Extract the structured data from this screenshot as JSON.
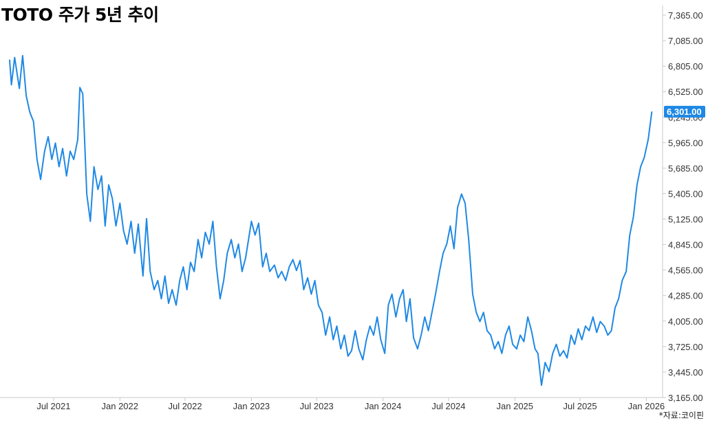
{
  "title": "TOTO 주가 5년 추이",
  "source": "*자료:코이핀",
  "colors": {
    "line": "#1e88e5",
    "axis": "#c8c8c8",
    "last_label_bg": "#1e88e5",
    "last_label_text": "#ffffff"
  },
  "chart_data": {
    "type": "line",
    "title": "TOTO 주가 5년 추이",
    "xlabel": "",
    "ylabel": "",
    "x_range": [
      "2021-03-01",
      "2026-02-15"
    ],
    "ylim": [
      3165,
      7365
    ],
    "y_axis_position": "right",
    "grid": false,
    "y_ticks": [
      "3,165.00",
      "3,445.00",
      "3,725.00",
      "4,005.00",
      "4,285.00",
      "4,565.00",
      "4,845.00",
      "5,125.00",
      "5,405.00",
      "5,685.00",
      "5,965.00",
      "6,245.00",
      "6,525.00",
      "6,805.00",
      "7,085.00",
      "7,365.00"
    ],
    "x_ticks": [
      {
        "date": "2021-07-01",
        "label": "Jul 2021"
      },
      {
        "date": "2022-01-01",
        "label": "Jan 2022"
      },
      {
        "date": "2022-07-01",
        "label": "Jul 2022"
      },
      {
        "date": "2023-01-01",
        "label": "Jan 2023"
      },
      {
        "date": "2023-07-01",
        "label": "Jul 2023"
      },
      {
        "date": "2024-01-01",
        "label": "Jan 2024"
      },
      {
        "date": "2024-07-01",
        "label": "Jul 2024"
      },
      {
        "date": "2025-01-01",
        "label": "Jan 2025"
      },
      {
        "date": "2025-07-01",
        "label": "Jul 2025"
      },
      {
        "date": "2026-01-01",
        "label": "Jan 2026"
      }
    ],
    "last_value_label": "6,301.00",
    "series": [
      {
        "points": [
          [
            "2021-03-01",
            6870
          ],
          [
            "2021-03-06",
            6600
          ],
          [
            "2021-03-15",
            6900
          ],
          [
            "2021-03-28",
            6560
          ],
          [
            "2021-04-06",
            6920
          ],
          [
            "2021-04-16",
            6480
          ],
          [
            "2021-04-26",
            6300
          ],
          [
            "2021-05-06",
            6200
          ],
          [
            "2021-05-16",
            5780
          ],
          [
            "2021-05-26",
            5560
          ],
          [
            "2021-06-06",
            5870
          ],
          [
            "2021-06-16",
            6030
          ],
          [
            "2021-06-26",
            5780
          ],
          [
            "2021-07-06",
            5960
          ],
          [
            "2021-07-16",
            5700
          ],
          [
            "2021-07-26",
            5900
          ],
          [
            "2021-08-06",
            5600
          ],
          [
            "2021-08-16",
            5870
          ],
          [
            "2021-08-26",
            5780
          ],
          [
            "2021-09-06",
            6000
          ],
          [
            "2021-09-12",
            6570
          ],
          [
            "2021-09-20",
            6500
          ],
          [
            "2021-10-01",
            5400
          ],
          [
            "2021-10-11",
            5100
          ],
          [
            "2021-10-21",
            5700
          ],
          [
            "2021-11-01",
            5450
          ],
          [
            "2021-11-11",
            5600
          ],
          [
            "2021-11-21",
            5050
          ],
          [
            "2021-12-01",
            5500
          ],
          [
            "2021-12-11",
            5350
          ],
          [
            "2021-12-21",
            5050
          ],
          [
            "2022-01-01",
            5300
          ],
          [
            "2022-01-11",
            5000
          ],
          [
            "2022-01-21",
            4850
          ],
          [
            "2022-02-01",
            5100
          ],
          [
            "2022-02-11",
            4750
          ],
          [
            "2022-02-21",
            5070
          ],
          [
            "2022-03-06",
            4500
          ],
          [
            "2022-03-16",
            5130
          ],
          [
            "2022-03-26",
            4550
          ],
          [
            "2022-04-06",
            4350
          ],
          [
            "2022-04-16",
            4450
          ],
          [
            "2022-04-26",
            4250
          ],
          [
            "2022-05-06",
            4500
          ],
          [
            "2022-05-16",
            4200
          ],
          [
            "2022-05-26",
            4350
          ],
          [
            "2022-06-06",
            4180
          ],
          [
            "2022-06-16",
            4450
          ],
          [
            "2022-06-26",
            4600
          ],
          [
            "2022-07-06",
            4350
          ],
          [
            "2022-07-16",
            4650
          ],
          [
            "2022-07-26",
            4550
          ],
          [
            "2022-08-06",
            4900
          ],
          [
            "2022-08-16",
            4700
          ],
          [
            "2022-08-26",
            4980
          ],
          [
            "2022-09-06",
            4850
          ],
          [
            "2022-09-16",
            5100
          ],
          [
            "2022-09-26",
            4600
          ],
          [
            "2022-10-06",
            4250
          ],
          [
            "2022-10-16",
            4450
          ],
          [
            "2022-10-26",
            4750
          ],
          [
            "2022-11-06",
            4900
          ],
          [
            "2022-11-16",
            4700
          ],
          [
            "2022-11-26",
            4850
          ],
          [
            "2022-12-06",
            4550
          ],
          [
            "2022-12-16",
            4700
          ],
          [
            "2023-01-01",
            5100
          ],
          [
            "2023-01-11",
            4950
          ],
          [
            "2023-01-21",
            5080
          ],
          [
            "2023-02-01",
            4600
          ],
          [
            "2023-02-11",
            4750
          ],
          [
            "2023-02-21",
            4550
          ],
          [
            "2023-03-06",
            4620
          ],
          [
            "2023-03-16",
            4480
          ],
          [
            "2023-03-26",
            4550
          ],
          [
            "2023-04-06",
            4450
          ],
          [
            "2023-04-16",
            4600
          ],
          [
            "2023-04-26",
            4680
          ],
          [
            "2023-05-06",
            4560
          ],
          [
            "2023-05-16",
            4670
          ],
          [
            "2023-05-26",
            4350
          ],
          [
            "2023-06-06",
            4480
          ],
          [
            "2023-06-16",
            4300
          ],
          [
            "2023-06-26",
            4450
          ],
          [
            "2023-07-06",
            4180
          ],
          [
            "2023-07-16",
            4100
          ],
          [
            "2023-07-26",
            3850
          ],
          [
            "2023-08-06",
            4050
          ],
          [
            "2023-08-16",
            3800
          ],
          [
            "2023-08-26",
            3950
          ],
          [
            "2023-09-06",
            3700
          ],
          [
            "2023-09-16",
            3850
          ],
          [
            "2023-09-26",
            3620
          ],
          [
            "2023-10-06",
            3680
          ],
          [
            "2023-10-16",
            3900
          ],
          [
            "2023-10-26",
            3700
          ],
          [
            "2023-11-06",
            3580
          ],
          [
            "2023-11-16",
            3800
          ],
          [
            "2023-11-26",
            3950
          ],
          [
            "2023-12-06",
            3850
          ],
          [
            "2023-12-16",
            4050
          ],
          [
            "2023-12-26",
            3800
          ],
          [
            "2024-01-06",
            3650
          ],
          [
            "2024-01-16",
            4180
          ],
          [
            "2024-01-26",
            4300
          ],
          [
            "2024-02-06",
            4050
          ],
          [
            "2024-02-16",
            4250
          ],
          [
            "2024-02-26",
            4350
          ],
          [
            "2024-03-06",
            4000
          ],
          [
            "2024-03-16",
            4250
          ],
          [
            "2024-03-26",
            3820
          ],
          [
            "2024-04-06",
            3700
          ],
          [
            "2024-04-16",
            3850
          ],
          [
            "2024-04-26",
            4050
          ],
          [
            "2024-05-06",
            3900
          ],
          [
            "2024-05-16",
            4100
          ],
          [
            "2024-05-26",
            4300
          ],
          [
            "2024-06-06",
            4550
          ],
          [
            "2024-06-16",
            4750
          ],
          [
            "2024-06-26",
            4850
          ],
          [
            "2024-07-06",
            5050
          ],
          [
            "2024-07-16",
            4800
          ],
          [
            "2024-07-26",
            5250
          ],
          [
            "2024-08-06",
            5400
          ],
          [
            "2024-08-16",
            5300
          ],
          [
            "2024-08-26",
            4900
          ],
          [
            "2024-09-06",
            4300
          ],
          [
            "2024-09-16",
            4100
          ],
          [
            "2024-09-26",
            4000
          ],
          [
            "2024-10-06",
            4100
          ],
          [
            "2024-10-16",
            3900
          ],
          [
            "2024-10-26",
            3850
          ],
          [
            "2024-11-06",
            3700
          ],
          [
            "2024-11-16",
            3780
          ],
          [
            "2024-11-26",
            3650
          ],
          [
            "2024-12-06",
            3850
          ],
          [
            "2024-12-16",
            3950
          ],
          [
            "2024-12-26",
            3750
          ],
          [
            "2025-01-06",
            3700
          ],
          [
            "2025-01-16",
            3850
          ],
          [
            "2025-01-26",
            3780
          ],
          [
            "2025-02-06",
            4050
          ],
          [
            "2025-02-16",
            3900
          ],
          [
            "2025-02-26",
            3700
          ],
          [
            "2025-03-06",
            3650
          ],
          [
            "2025-03-16",
            3300
          ],
          [
            "2025-03-26",
            3550
          ],
          [
            "2025-04-06",
            3450
          ],
          [
            "2025-04-16",
            3650
          ],
          [
            "2025-04-26",
            3750
          ],
          [
            "2025-05-06",
            3620
          ],
          [
            "2025-05-16",
            3680
          ],
          [
            "2025-05-26",
            3600
          ],
          [
            "2025-06-06",
            3850
          ],
          [
            "2025-06-16",
            3750
          ],
          [
            "2025-06-26",
            3920
          ],
          [
            "2025-07-06",
            3800
          ],
          [
            "2025-07-16",
            3950
          ],
          [
            "2025-07-26",
            3900
          ],
          [
            "2025-08-06",
            4050
          ],
          [
            "2025-08-16",
            3880
          ],
          [
            "2025-08-26",
            4000
          ],
          [
            "2025-09-06",
            3950
          ],
          [
            "2025-09-16",
            3850
          ],
          [
            "2025-09-26",
            3900
          ],
          [
            "2025-10-06",
            4150
          ],
          [
            "2025-10-16",
            4250
          ],
          [
            "2025-10-26",
            4450
          ],
          [
            "2025-11-06",
            4550
          ],
          [
            "2025-11-16",
            4950
          ],
          [
            "2025-11-26",
            5150
          ],
          [
            "2025-12-06",
            5500
          ],
          [
            "2025-12-16",
            5700
          ],
          [
            "2025-12-26",
            5800
          ],
          [
            "2026-01-06",
            6000
          ],
          [
            "2026-01-16",
            6301
          ]
        ]
      }
    ]
  }
}
